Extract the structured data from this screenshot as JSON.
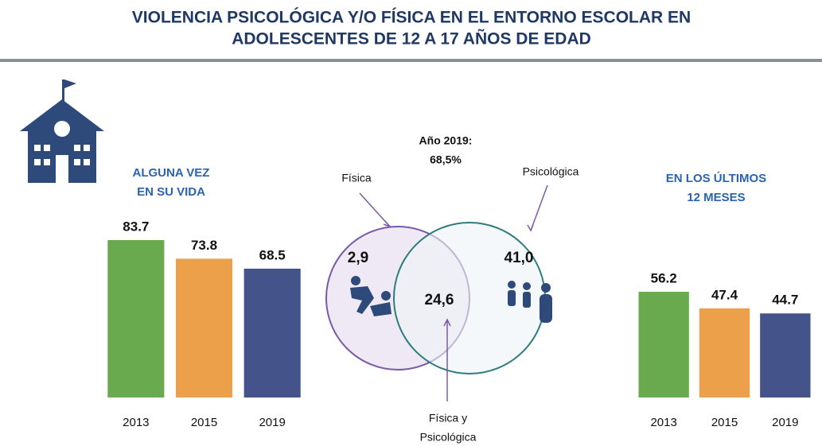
{
  "title": [
    "VIOLENCIA PSICOLÓGICA Y/O FÍSICA EN EL ENTORNO ESCOLAR EN",
    "ADOLESCENTES DE 12 A 17 AÑOS DE EDAD"
  ],
  "chart_data": [
    {
      "type": "bar",
      "title": [
        "ALGUNA VEZ",
        "EN SU VIDA"
      ],
      "categories": [
        "2013",
        "2015",
        "2019"
      ],
      "values": [
        83.7,
        73.8,
        68.5
      ],
      "colors": [
        "#6aaa4f",
        "#eda04a",
        "#44548a"
      ],
      "ylim": [
        0,
        100
      ]
    },
    {
      "type": "bar",
      "title": [
        "EN LOS ÚLTIMOS",
        "12 MESES"
      ],
      "categories": [
        "2013",
        "2015",
        "2019"
      ],
      "values": [
        56.2,
        47.4,
        44.7
      ],
      "colors": [
        "#6aaa4f",
        "#eda04a",
        "#44548a"
      ],
      "ylim": [
        0,
        100
      ]
    }
  ],
  "venn": {
    "title": "Año 2019:",
    "total": "68,5%",
    "left": {
      "label": "Física",
      "value": "2,9"
    },
    "right": {
      "label": "Psicológica",
      "value": "41,0"
    },
    "both": {
      "label": [
        "Física y",
        "Psicológica"
      ],
      "value": "24,6"
    }
  }
}
